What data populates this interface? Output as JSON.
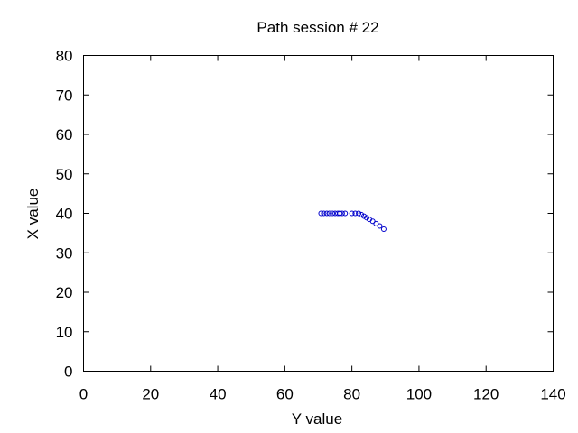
{
  "chart_data": {
    "type": "scatter",
    "title": "Path session # 22",
    "xlabel": "Y value",
    "ylabel": "X value",
    "xlim": [
      0,
      140
    ],
    "ylim": [
      0,
      80
    ],
    "xticks": [
      "0",
      "20",
      "40",
      "60",
      "80",
      "100",
      "120",
      "140"
    ],
    "yticks": [
      "0",
      "10",
      "20",
      "30",
      "40",
      "50",
      "60",
      "70",
      "80"
    ],
    "grid": false,
    "marker": "circle",
    "colors": {
      "points": "#0000cc",
      "axes": "#000000",
      "background": "#ffffff"
    },
    "series": [
      {
        "x": [
          70.8,
          71.6,
          72.5,
          73.3,
          74.2,
          75.0,
          75.8,
          76.4,
          77.1,
          78.0,
          80.0,
          81.0,
          82.0,
          82.8,
          83.6,
          84.4,
          85.2,
          86.2,
          87.2,
          88.3,
          89.5
        ],
        "y": [
          40.0,
          40.0,
          40.0,
          40.0,
          40.0,
          40.0,
          40.0,
          40.0,
          40.0,
          40.0,
          40.0,
          40.0,
          40.0,
          39.7,
          39.3,
          38.9,
          38.5,
          38.0,
          37.4,
          36.8,
          36.0
        ]
      }
    ]
  }
}
